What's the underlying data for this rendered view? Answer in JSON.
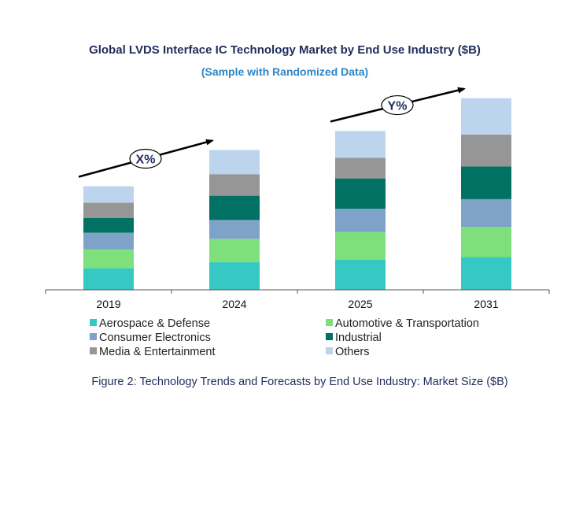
{
  "chart_data": {
    "type": "bar",
    "stacked": true,
    "title": "Global LVDS Interface IC  Technology Market by End Use Industry ($B)",
    "subtitle": "(Sample with Randomized Data)",
    "categories": [
      "2019",
      "2024",
      "2025",
      "2031"
    ],
    "series": [
      {
        "name": "Aerospace & Defense",
        "color": "#36c8c2",
        "values": [
          2.5,
          3.2,
          3.5,
          3.8
        ]
      },
      {
        "name": "Automotive & Transportation",
        "color": "#7de07a",
        "values": [
          2.2,
          2.7,
          3.2,
          3.5
        ]
      },
      {
        "name": "Consumer Electronics",
        "color": "#7fa3c8",
        "values": [
          1.9,
          2.2,
          2.7,
          3.2
        ]
      },
      {
        "name": "Industrial",
        "color": "#007162",
        "values": [
          1.7,
          2.8,
          3.5,
          3.8
        ]
      },
      {
        "name": "Media & Entertainment",
        "color": "#969696",
        "values": [
          1.8,
          2.5,
          2.4,
          3.7
        ]
      },
      {
        "name": "Others",
        "color": "#bdd4ee",
        "values": [
          1.9,
          2.8,
          3.1,
          4.2
        ]
      }
    ],
    "annotations": [
      {
        "label": "X%",
        "from": "2019",
        "to": "2024"
      },
      {
        "label": "Y%",
        "from": "2025",
        "to": "2031"
      }
    ],
    "ylim": [
      0,
      24
    ],
    "xlabel": "",
    "ylabel": "",
    "legend_position": "bottom",
    "grid": false
  },
  "caption": "Figure 2: Technology  Trends  and Forecasts by End Use Industry:  Market Size ($B)"
}
